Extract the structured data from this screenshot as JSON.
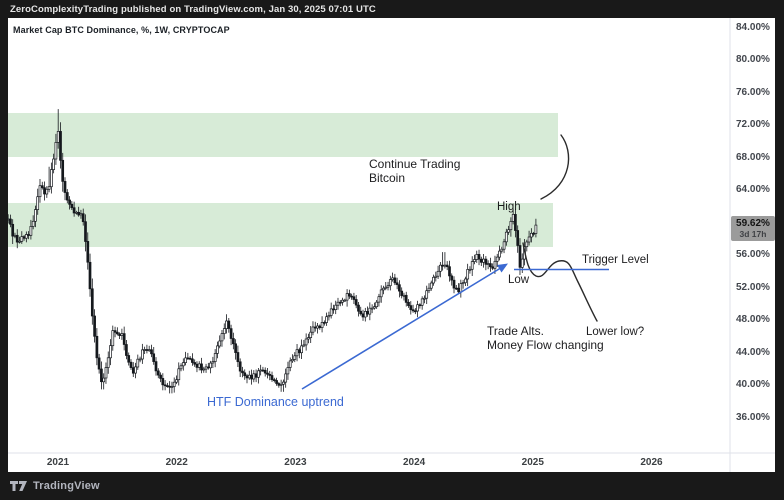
{
  "topbar": {
    "text": "ZeroComplexityTrading published on TradingView.com, Jan 30, 2025 07:01 UTC"
  },
  "chart": {
    "title": "Market Cap BTC Dominance, %, 1W, CRYPTOCAP"
  },
  "annotations": {
    "continue_trading_line1": "Continue Trading",
    "continue_trading_line2": "Bitcoin",
    "high": "High",
    "low": "Low",
    "trigger_level": "Trigger Level",
    "trade_alts_line1": "Trade Alts.",
    "trade_alts_line2": "Money Flow changing",
    "lower_low": "Lower low?",
    "htf_uptrend": "HTF Dominance uptrend"
  },
  "axis": {
    "price_ticks": [
      84,
      80,
      76,
      72,
      68,
      64,
      56,
      52,
      48,
      44,
      40,
      36
    ],
    "price_suffix": ".00%",
    "years": [
      2021,
      2022,
      2023,
      2024,
      2025,
      2026
    ],
    "last_price_label": "59.62%",
    "countdown": "3d 17h"
  },
  "footer": {
    "brand": "TradingView"
  },
  "colors": {
    "accent_blue": "#3b69d2",
    "band_green": "#d7ebd7",
    "frame_dark": "#191919",
    "candle_dark": "#15181d",
    "label_gray": "#9b9b9b",
    "axis_line": "#dfe2e8"
  },
  "chart_data": {
    "type": "candlestick",
    "title": "Market Cap BTC Dominance, %, 1W, CRYPTOCAP",
    "symbol": "CRYPTOCAP BTC Dominance",
    "timeframe": "1W",
    "unit": "%",
    "ylim": [
      36,
      84
    ],
    "xlim_years": [
      2020.58,
      2026.66
    ],
    "grid": false,
    "last_close": 59.62,
    "countdown": "3d 17h",
    "zones": [
      {
        "name": "upper-green-zone",
        "pct_range": [
          68.0,
          73.4
        ],
        "x_start_year": 2020.58,
        "x_end_year": 2025.21
      },
      {
        "name": "lower-green-zone",
        "pct_range": [
          57.0,
          62.3
        ],
        "x_start_year": 2020.58,
        "x_end_year": 2025.17
      }
    ],
    "anchors_year_pct": [
      [
        2020.58,
        60.3
      ],
      [
        2020.62,
        58.6
      ],
      [
        2020.66,
        57.6
      ],
      [
        2020.71,
        58.0
      ],
      [
        2020.76,
        58.8
      ],
      [
        2020.8,
        60.2
      ],
      [
        2020.84,
        64.8
      ],
      [
        2020.88,
        63.6
      ],
      [
        2020.92,
        64.4
      ],
      [
        2020.96,
        67.5
      ],
      [
        2021.0,
        71.3
      ],
      [
        2021.03,
        66.0
      ],
      [
        2021.06,
        63.3
      ],
      [
        2021.1,
        61.8
      ],
      [
        2021.14,
        61.2
      ],
      [
        2021.18,
        60.8
      ],
      [
        2021.21,
        60.3
      ],
      [
        2021.24,
        57.0
      ],
      [
        2021.27,
        51.5
      ],
      [
        2021.3,
        46.5
      ],
      [
        2021.34,
        42.2
      ],
      [
        2021.375,
        40.0
      ],
      [
        2021.42,
        43.0
      ],
      [
        2021.46,
        46.4
      ],
      [
        2021.5,
        45.9
      ],
      [
        2021.535,
        46.3
      ],
      [
        2021.58,
        43.6
      ],
      [
        2021.63,
        41.4
      ],
      [
        2021.68,
        43.1
      ],
      [
        2021.72,
        44.8
      ],
      [
        2021.77,
        44.1
      ],
      [
        2021.83,
        41.8
      ],
      [
        2021.89,
        39.9
      ],
      [
        2021.95,
        39.3
      ],
      [
        2022.02,
        41.8
      ],
      [
        2022.08,
        43.1
      ],
      [
        2022.14,
        42.8
      ],
      [
        2022.21,
        42.0
      ],
      [
        2022.27,
        41.8
      ],
      [
        2022.33,
        44.2
      ],
      [
        2022.39,
        46.6
      ],
      [
        2022.42,
        47.6
      ],
      [
        2022.48,
        44.8
      ],
      [
        2022.53,
        41.8
      ],
      [
        2022.59,
        40.6
      ],
      [
        2022.66,
        41.0
      ],
      [
        2022.72,
        41.8
      ],
      [
        2022.78,
        41.1
      ],
      [
        2022.84,
        40.3
      ],
      [
        2022.89,
        39.6
      ],
      [
        2022.95,
        42.6
      ],
      [
        2023.01,
        44.0
      ],
      [
        2023.08,
        45.0
      ],
      [
        2023.15,
        46.8
      ],
      [
        2023.21,
        47.1
      ],
      [
        2023.27,
        48.4
      ],
      [
        2023.33,
        49.6
      ],
      [
        2023.4,
        50.5
      ],
      [
        2023.46,
        51.2
      ],
      [
        2023.52,
        49.4
      ],
      [
        2023.56,
        48.4
      ],
      [
        2023.62,
        49.1
      ],
      [
        2023.68,
        50.3
      ],
      [
        2023.74,
        51.6
      ],
      [
        2023.8,
        53.0
      ],
      [
        2023.86,
        52.1
      ],
      [
        2023.92,
        50.4
      ],
      [
        2023.97,
        49.0
      ],
      [
        2024.03,
        49.7
      ],
      [
        2024.09,
        51.1
      ],
      [
        2024.14,
        52.5
      ],
      [
        2024.2,
        53.9
      ],
      [
        2024.25,
        55.1
      ],
      [
        2024.31,
        52.9
      ],
      [
        2024.36,
        51.4
      ],
      [
        2024.42,
        52.9
      ],
      [
        2024.48,
        54.6
      ],
      [
        2024.54,
        55.8
      ],
      [
        2024.6,
        54.8
      ],
      [
        2024.65,
        54.1
      ],
      [
        2024.7,
        55.8
      ],
      [
        2024.75,
        57.4
      ],
      [
        2024.8,
        59.6
      ],
      [
        2024.835,
        61.0
      ],
      [
        2024.865,
        58.2
      ],
      [
        2024.895,
        54.4
      ],
      [
        2024.93,
        57.2
      ],
      [
        2024.965,
        58.3
      ],
      [
        2025.0,
        58.7
      ],
      [
        2025.04,
        59.62
      ]
    ],
    "wick_events": [
      {
        "year": 2020.92,
        "high": 66.8
      },
      {
        "year": 2021.0,
        "high": 73.9
      },
      {
        "year": 2021.375,
        "low": 39.4
      },
      {
        "year": 2021.95,
        "low": 38.9
      },
      {
        "year": 2022.42,
        "high": 48.5
      },
      {
        "year": 2022.89,
        "low": 39.1
      },
      {
        "year": 2024.25,
        "high": 56.3
      },
      {
        "year": 2024.835,
        "high": 61.6
      },
      {
        "year": 2024.895,
        "low": 53.8
      }
    ],
    "drawings": {
      "trigger_line": {
        "pct": 54.0,
        "x_year_range": [
          2024.84,
          2025.64
        ]
      },
      "trend_arrow": {
        "from_year_pct": [
          2023.06,
          40.3
        ],
        "to_year_pct": [
          2024.77,
          55.4
        ]
      }
    }
  }
}
